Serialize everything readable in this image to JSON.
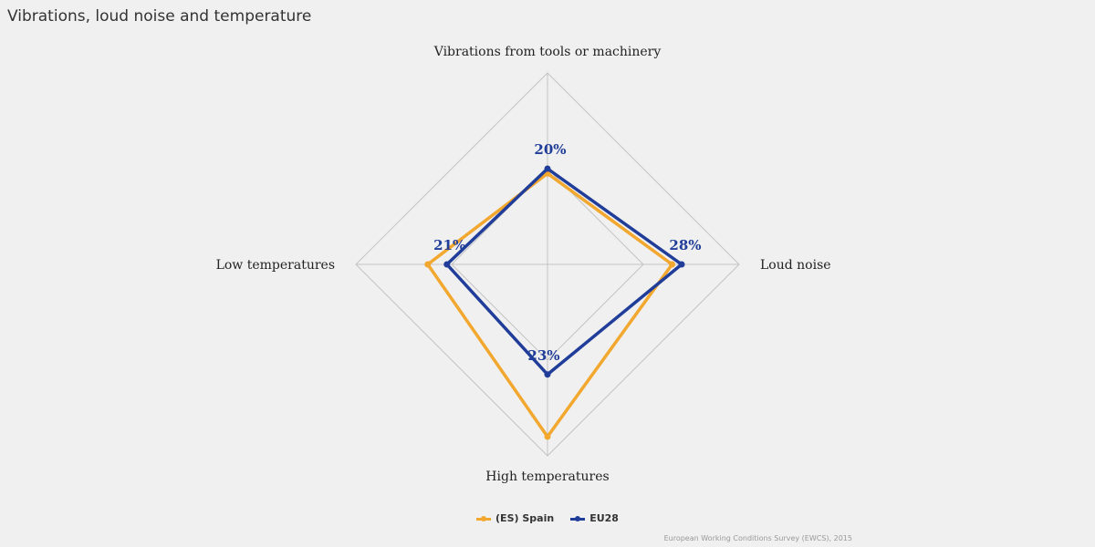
{
  "page": {
    "title": "Vibrations, loud noise and temperature"
  },
  "source": "European Working Conditions Survey (EWCS), 2015",
  "chart_data": {
    "type": "radar",
    "title": "Vibrations, loud noise and temperature",
    "axes": [
      "Vibrations from tools or machinery",
      "Loud noise",
      "High temperatures",
      "Low temperatures"
    ],
    "range": [
      0,
      40
    ],
    "grid": true,
    "legend_position": "bottom-center",
    "series": [
      {
        "name": "(ES) Spain",
        "color": "#f2a72e",
        "values": [
          19,
          26,
          36,
          25
        ]
      },
      {
        "name": "EU28",
        "color": "#1f3d99",
        "values": [
          20,
          28,
          23,
          21
        ],
        "data_labels": [
          "20%",
          "28%",
          "23%",
          "21%"
        ]
      }
    ]
  }
}
